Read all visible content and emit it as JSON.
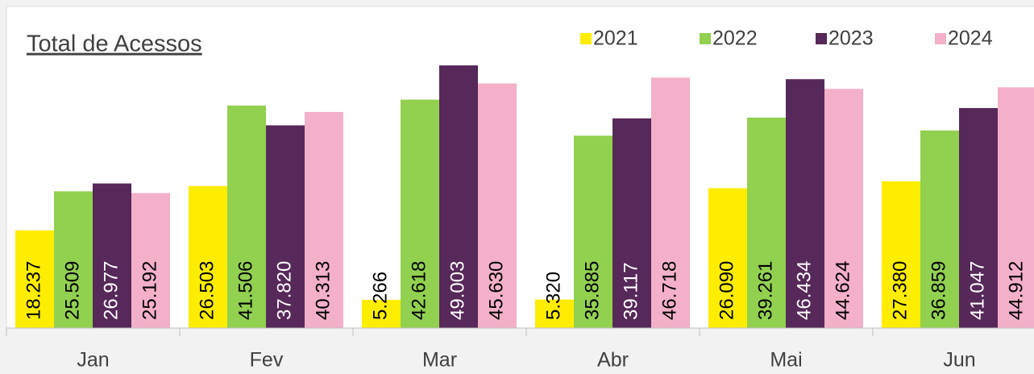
{
  "chart_data": {
    "type": "bar",
    "title": "Total de Acessos",
    "categories": [
      "Jan",
      "Fev",
      "Mar",
      "Abr",
      "Mai",
      "Jun"
    ],
    "series": [
      {
        "name": "2021",
        "color": "#ffed00",
        "values": [
          18237,
          26503,
          5266,
          5320,
          26090,
          27380
        ],
        "value_labels": [
          "18.237",
          "26.503",
          "5.266",
          "5.320",
          "26.090",
          "27.380"
        ]
      },
      {
        "name": "2022",
        "color": "#92d050",
        "values": [
          25509,
          41506,
          42618,
          35885,
          39261,
          36859
        ],
        "value_labels": [
          "25.509",
          "41.506",
          "42.618",
          "35.885",
          "39.261",
          "36.859"
        ]
      },
      {
        "name": "2023",
        "color": "#57285a",
        "values": [
          26977,
          37820,
          49003,
          39117,
          46434,
          41047
        ],
        "value_labels": [
          "26.977",
          "37.820",
          "49.003",
          "39.117",
          "46.434",
          "41.047"
        ]
      },
      {
        "name": "2024",
        "color": "#f4b0c8",
        "values": [
          25192,
          40313,
          45630,
          46718,
          44624,
          44912
        ],
        "value_labels": [
          "25.192",
          "40.313",
          "45.630",
          "46.718",
          "44.624",
          "44.912"
        ]
      }
    ],
    "ylim": [
      0,
      60000
    ]
  }
}
